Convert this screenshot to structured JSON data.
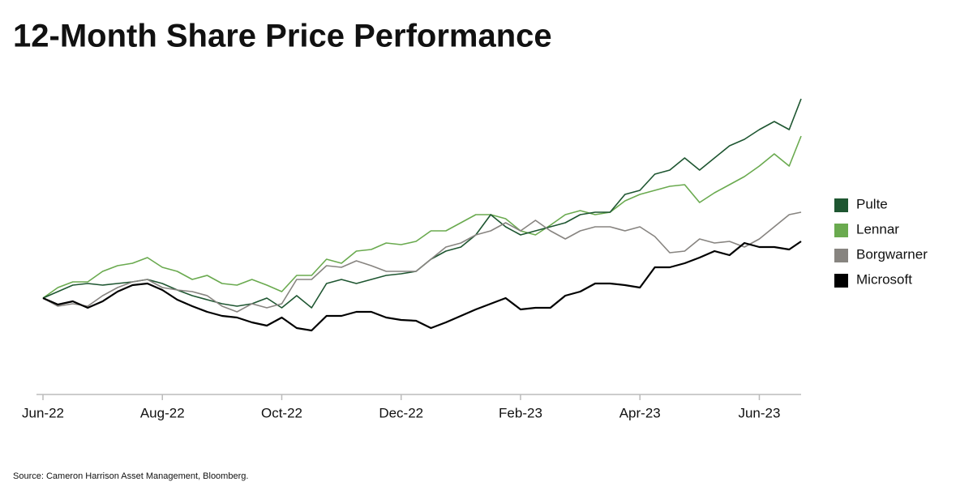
{
  "chart_data": {
    "type": "line",
    "title": "12-Month Share Price Performance",
    "source": "Source: Cameron Harrison Asset Management, Bloomberg.",
    "x": [
      0,
      0.25,
      0.5,
      0.75,
      1,
      1.25,
      1.5,
      1.75,
      2,
      2.25,
      2.5,
      2.75,
      3,
      3.25,
      3.5,
      3.75,
      4,
      4.25,
      4.5,
      4.75,
      5,
      5.25,
      5.5,
      5.75,
      6,
      6.25,
      6.5,
      6.75,
      7,
      7.25,
      7.5,
      7.75,
      8,
      8.25,
      8.5,
      8.75,
      9,
      9.25,
      9.5,
      9.75,
      10,
      10.25,
      10.5,
      10.75,
      11,
      11.25,
      11.5,
      11.75,
      12,
      12.25,
      12.5,
      12.7
    ],
    "xlim": [
      0,
      12.7
    ],
    "xticks": [
      {
        "value": 0,
        "label": "Jun-22"
      },
      {
        "value": 2,
        "label": "Aug-22"
      },
      {
        "value": 4,
        "label": "Oct-22"
      },
      {
        "value": 6,
        "label": "Dec-22"
      },
      {
        "value": 8,
        "label": "Feb-23"
      },
      {
        "value": 10,
        "label": "Apr-23"
      },
      {
        "value": 12,
        "label": "Jun-23"
      }
    ],
    "ylim": [
      40,
      250
    ],
    "legend": "right",
    "series": [
      {
        "name": "Pulte",
        "color": "#1e5631",
        "values": [
          100,
          104,
          108,
          109,
          108,
          109,
          110,
          111.5,
          109,
          105,
          101.5,
          99,
          96.5,
          95,
          96.5,
          100,
          94,
          101.5,
          94,
          109,
          111.5,
          109,
          111.5,
          114,
          115,
          116.5,
          124,
          129,
          131.5,
          139,
          151.5,
          144,
          139,
          141.5,
          144,
          146.5,
          151.5,
          153,
          153,
          164,
          166.5,
          176.5,
          179,
          186.5,
          179,
          186.5,
          194,
          198,
          204,
          209,
          204,
          223
        ]
      },
      {
        "name": "Lennar",
        "color": "#6aaa4f",
        "values": [
          100,
          106.5,
          110,
          110,
          116.5,
          120,
          121.5,
          125,
          119,
          116.5,
          111.5,
          114,
          109,
          108,
          111.5,
          108,
          104,
          114,
          114,
          124,
          121.5,
          129,
          130,
          134,
          133,
          135,
          141.5,
          141.5,
          146.5,
          151.5,
          151.5,
          149,
          141.5,
          139,
          145,
          151.5,
          154,
          151.5,
          153,
          160,
          164,
          166.5,
          169,
          170,
          159,
          165,
          170,
          175,
          181.5,
          189,
          181.5,
          200
        ]
      },
      {
        "name": "Borgwarner",
        "color": "#878480",
        "values": [
          100,
          95,
          96.5,
          95,
          101.5,
          106.5,
          110,
          111.5,
          106.5,
          105,
          104,
          101.5,
          95,
          91.5,
          96.5,
          94,
          96.5,
          111.5,
          111.5,
          120,
          119,
          123,
          120,
          116.5,
          116.5,
          116.5,
          124,
          131.5,
          134,
          139,
          141.5,
          146.5,
          141.5,
          148,
          141.5,
          136.5,
          141.5,
          144,
          144,
          141.5,
          144,
          138,
          128,
          129,
          136.5,
          134,
          135,
          131.5,
          136.5,
          144,
          151.5,
          153
        ]
      },
      {
        "name": "Microsoft",
        "color": "#000000",
        "values": [
          100,
          96,
          98,
          94,
          98,
          104,
          108,
          109,
          105,
          99,
          95,
          91.5,
          89,
          88,
          85,
          83,
          88,
          81.5,
          80,
          89,
          89,
          91.5,
          91.5,
          88,
          86.5,
          86,
          81.5,
          85,
          89,
          93,
          96.5,
          100,
          93,
          94,
          94,
          101.5,
          104,
          109,
          109,
          108,
          106.5,
          119,
          119,
          121.5,
          125,
          129,
          126.5,
          134,
          131.5,
          131.5,
          130,
          135
        ]
      }
    ]
  }
}
